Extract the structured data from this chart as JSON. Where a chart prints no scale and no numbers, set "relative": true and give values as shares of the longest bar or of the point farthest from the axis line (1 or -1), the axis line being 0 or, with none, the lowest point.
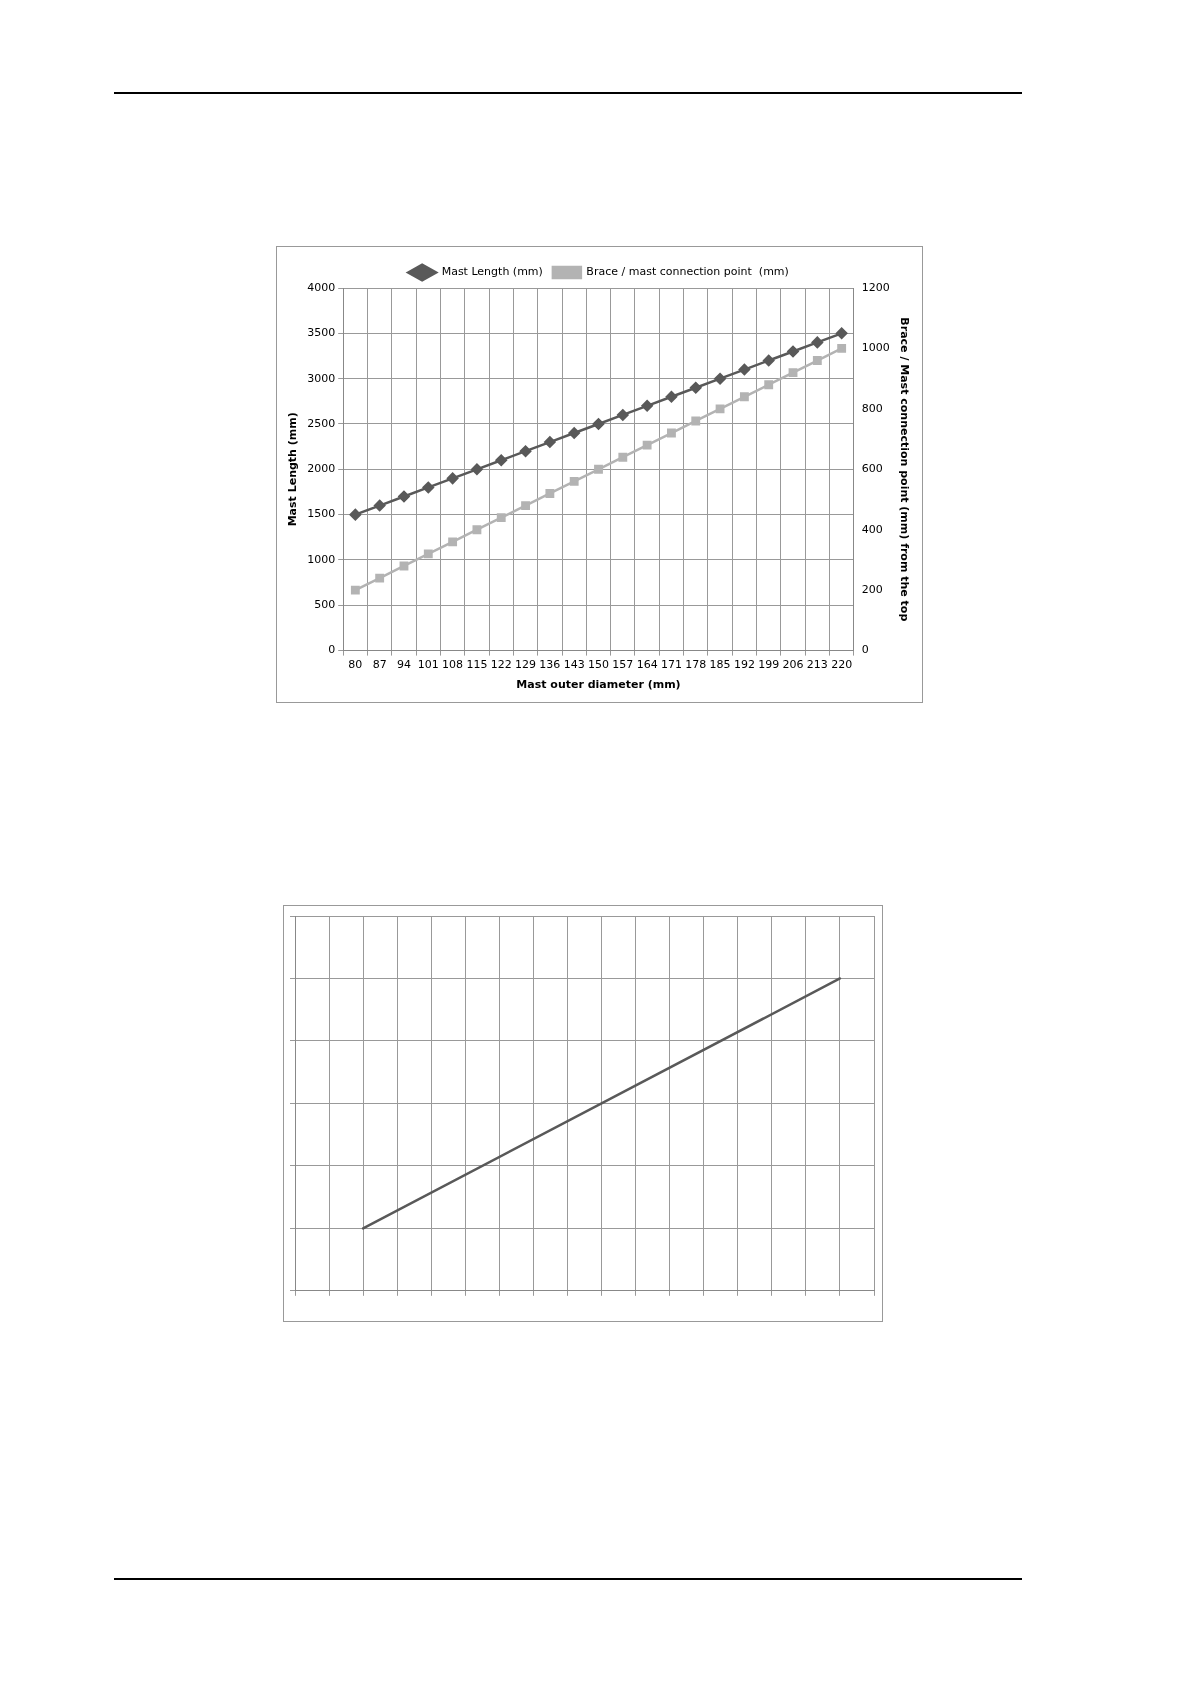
{
  "chart_data": [
    {
      "type": "line",
      "categories": [
        "80",
        "87",
        "94",
        "101",
        "108",
        "115",
        "122",
        "129",
        "136",
        "143",
        "150",
        "157",
        "164",
        "171",
        "178",
        "185",
        "192",
        "199",
        "206",
        "213",
        "220"
      ],
      "xlabel": "Mast outer diameter (mm)",
      "ylabel": "Mast Length (mm)",
      "y2label": "Brace / Mast connection point (mm) from the top",
      "ylim": [
        0,
        4000
      ],
      "yticks": [
        0,
        500,
        1000,
        1500,
        2000,
        2500,
        3000,
        3500,
        4000
      ],
      "y2lim": [
        0,
        1200
      ],
      "y2ticks": [
        0,
        200,
        400,
        600,
        800,
        1000,
        1200
      ],
      "grid": true,
      "legend": "top",
      "series": [
        {
          "name": "Mast Length (mm)",
          "color": "#595959",
          "marker": "diamond",
          "values": [
            1500,
            1600,
            1700,
            1800,
            1900,
            2000,
            2100,
            2200,
            2300,
            2400,
            2500,
            2600,
            2700,
            2800,
            2900,
            3000,
            3100,
            3200,
            3300,
            3400,
            3500
          ]
        },
        {
          "name": "Brace / mast connection point  (mm)",
          "color": "#b3b3b3",
          "marker": "square",
          "axis": "y2",
          "values": [
            200,
            240,
            280,
            320,
            360,
            400,
            440,
            480,
            520,
            560,
            600,
            640,
            680,
            720,
            760,
            800,
            840,
            880,
            920,
            960,
            1000
          ]
        }
      ]
    },
    {
      "type": "line",
      "categories": [
        null,
        null,
        null,
        null,
        null,
        null,
        null,
        null,
        null,
        null,
        null,
        null,
        null,
        null,
        null,
        null,
        null,
        null
      ],
      "relative": true,
      "grid": true,
      "series": [
        {
          "color": "#595959",
          "marker": "none",
          "values": [
            null,
            null,
            0.2,
            null,
            null,
            null,
            null,
            null,
            null,
            null,
            null,
            null,
            null,
            null,
            null,
            null,
            1,
            null
          ]
        }
      ]
    }
  ]
}
